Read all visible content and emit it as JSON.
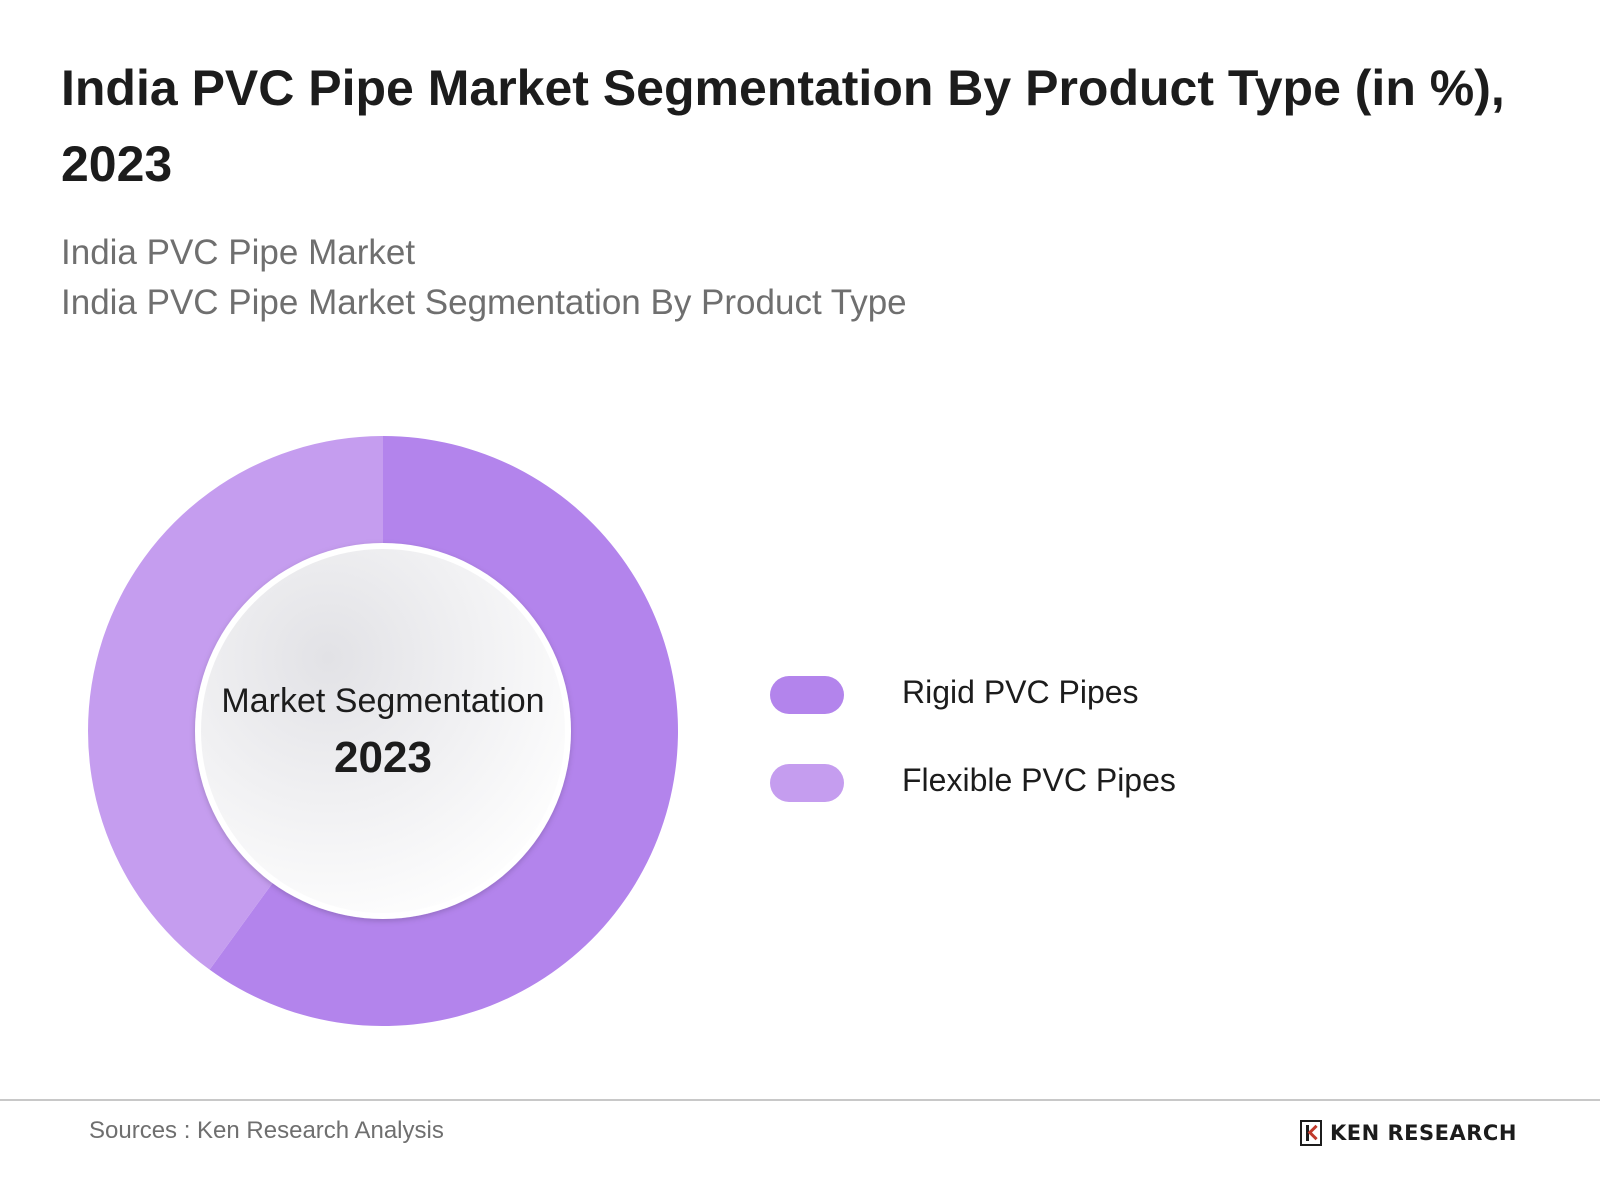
{
  "title": "India PVC Pipe Market Segmentation By Product Type (in %), 2023",
  "subtitle": {
    "line1": "India PVC Pipe Market",
    "line2": "India PVC Pipe Market Segmentation By Product Type"
  },
  "chart_data": {
    "type": "pie",
    "variant": "donut",
    "center_label": "Market Segmentation",
    "center_value": "2023",
    "series": [
      {
        "name": "Rigid PVC Pipes",
        "value": 60,
        "color": "#b384ec"
      },
      {
        "name": "Flexible PVC Pipes",
        "value": 40,
        "color": "#c59def"
      }
    ],
    "legend_position": "right"
  },
  "footer": {
    "source": "Sources : Ken Research Analysis",
    "brand": "KEN RESEARCH"
  }
}
